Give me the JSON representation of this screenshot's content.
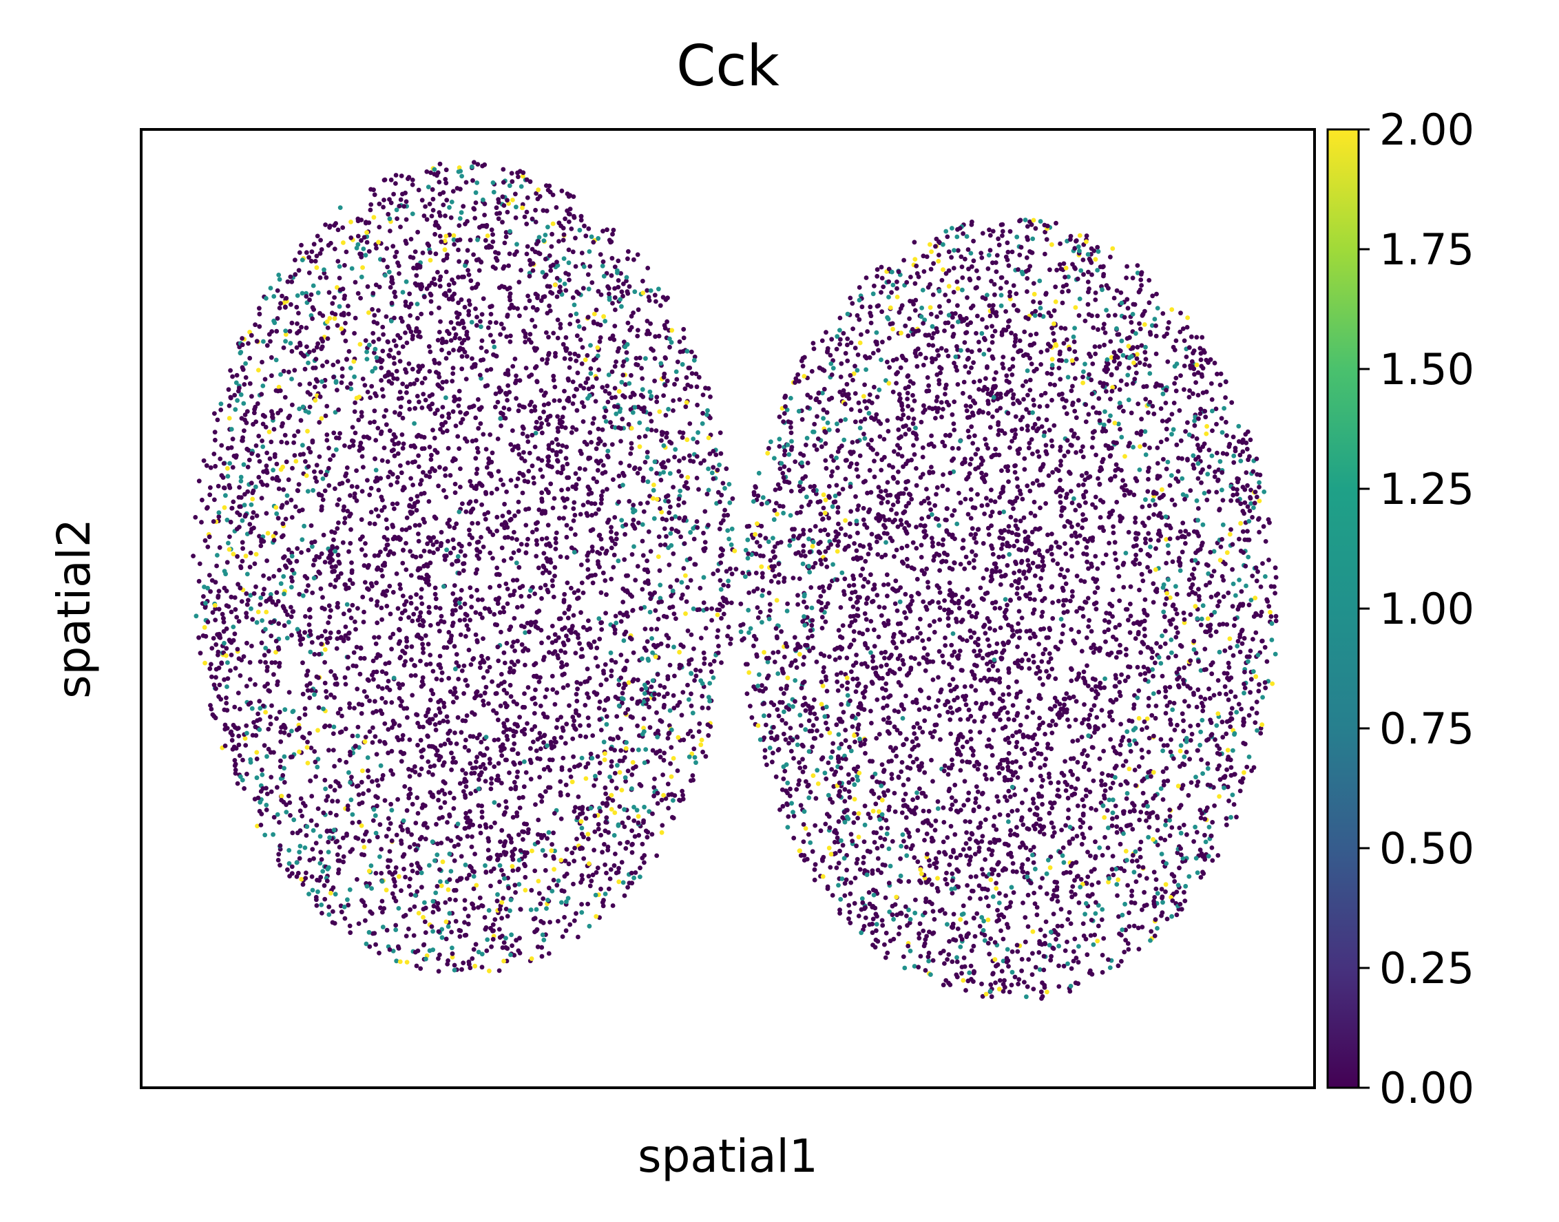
{
  "chart_data": {
    "type": "scatter",
    "title": "Cck",
    "xlabel": "spatial1",
    "ylabel": "spatial2",
    "xticks": [],
    "yticks": [],
    "grid": false,
    "colorbar": {
      "colormap": "viridis",
      "range": [
        0.0,
        2.0
      ],
      "ticks": [
        0.0,
        0.25,
        0.5,
        0.75,
        1.0,
        1.25,
        1.5,
        1.75,
        2.0
      ],
      "tick_labels": [
        "0.00",
        "0.25",
        "0.50",
        "0.75",
        "1.00",
        "1.25",
        "1.50",
        "1.75",
        "2.00"
      ]
    },
    "value_levels": [
      0,
      1,
      2
    ],
    "level_colors": {
      "0": "#440154",
      "1": "#21918c",
      "2": "#fde725"
    }
  }
}
